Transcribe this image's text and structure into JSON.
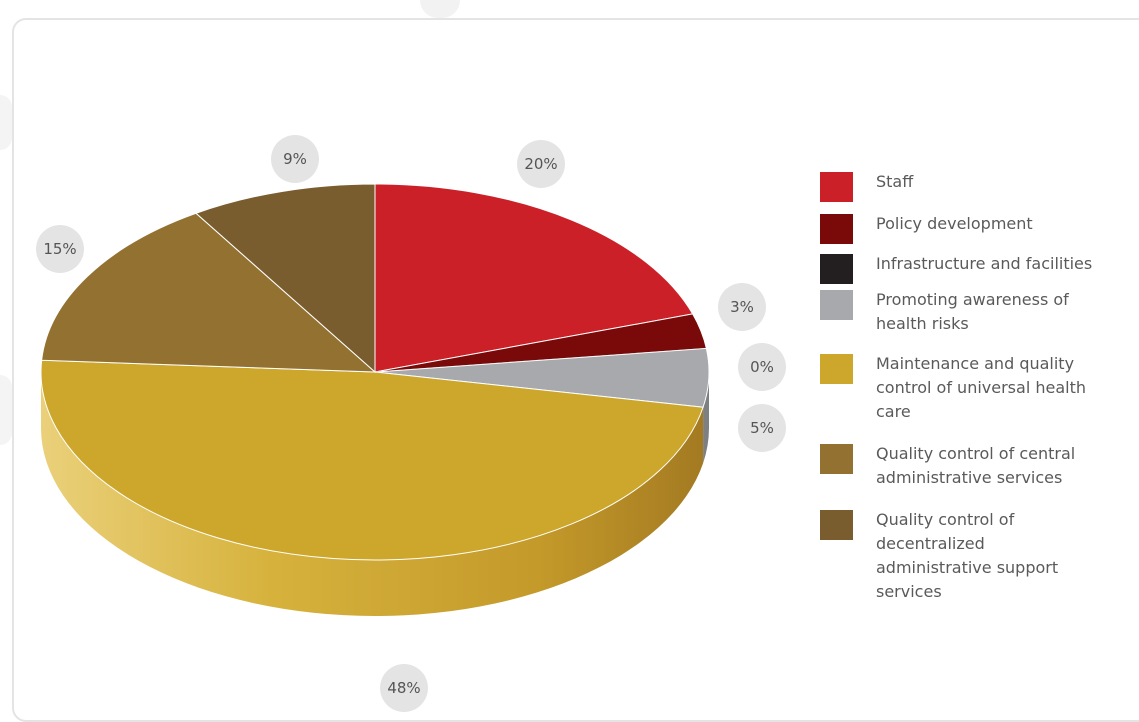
{
  "chart_data": {
    "type": "pie",
    "title": "",
    "categories": [
      "Staff",
      "Policy development",
      "Infrastructure and facilities",
      "Promoting awareness of health risks",
      "Maintenance and quality control of universal health care",
      "Quality control of central administrative services",
      "Quality control of decentralized administrative support services"
    ],
    "values": [
      20,
      3,
      0,
      5,
      48,
      15,
      9
    ],
    "value_labels": [
      "20%",
      "3%",
      "0%",
      "5%",
      "48%",
      "15%",
      "9%"
    ],
    "colors": [
      "#cc2029",
      "#7a0a0a",
      "#231f20",
      "#a7a9ac",
      "#cca72c",
      "#937130",
      "#7a5d2e"
    ],
    "legend_position": "right",
    "style": "3d"
  },
  "legend": {
    "items": [
      {
        "label": "Staff",
        "color": "#cc2029"
      },
      {
        "label": "Policy development",
        "color": "#7a0a0a"
      },
      {
        "label": "Infrastructure and facilities",
        "color": "#231f20"
      },
      {
        "label": "Promoting awareness of health risks",
        "color": "#a7a9ac"
      },
      {
        "label": "Maintenance and quality control of universal health care",
        "color": "#cca72c"
      },
      {
        "label": "Quality control of central administrative services",
        "color": "#937130"
      },
      {
        "label": "Quality control of decentralized administrative support services",
        "color": "#7a5d2e"
      }
    ]
  }
}
